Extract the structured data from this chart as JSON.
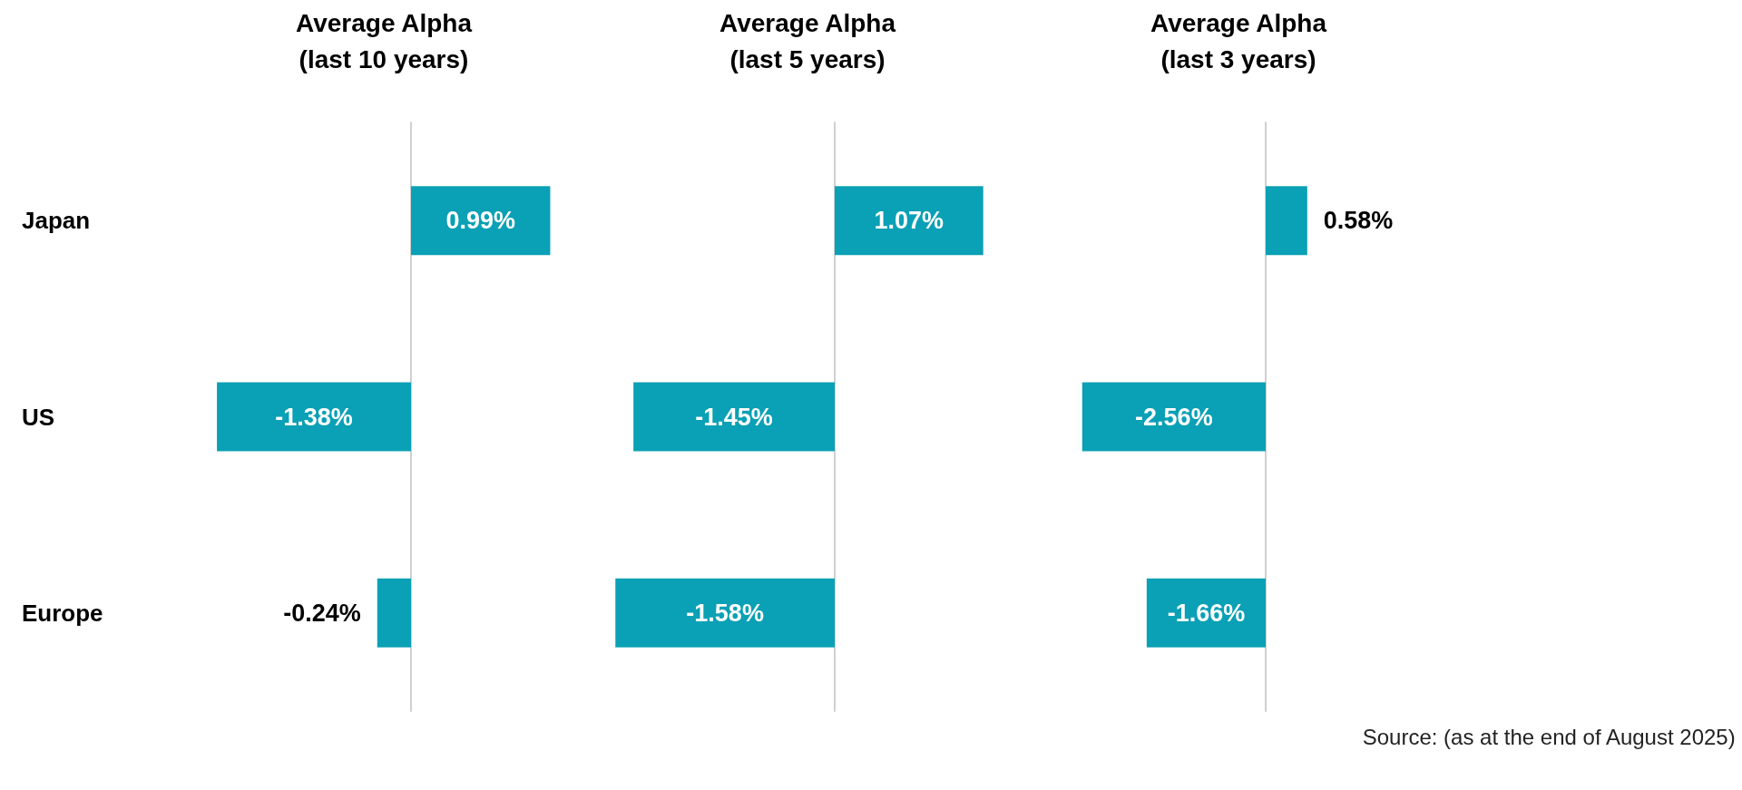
{
  "chart_data": [
    {
      "type": "bar",
      "orientation": "horizontal",
      "title": "Average Alpha\n(last 10 years)",
      "categories": [
        "Japan",
        "US",
        "Europe"
      ],
      "values": [
        0.99,
        -1.38,
        -0.24
      ],
      "value_labels": [
        "0.99%",
        "-1.38%",
        "-0.24%"
      ],
      "color": "#0aa0b5",
      "tick_labels": "y"
    },
    {
      "type": "bar",
      "orientation": "horizontal",
      "title": "Average Alpha\n(last 5 years)",
      "categories": [
        null,
        null,
        null
      ],
      "values": [
        1.07,
        -1.45,
        -1.58
      ],
      "value_labels": [
        "1.07%",
        "-1.45%",
        "-1.58%"
      ],
      "color": "#0aa0b5",
      "tick_labels": false
    },
    {
      "type": "bar",
      "orientation": "horizontal",
      "title": "Average Alpha\n(last 3 years)",
      "categories": [
        null,
        null,
        null
      ],
      "values": [
        0.58,
        -2.56,
        -1.66
      ],
      "value_labels": [
        "0.58%",
        "-2.56%",
        "-1.66%"
      ],
      "color": "#0aa0b5",
      "tick_labels": false,
      "annotations": [
        "Source: (as at the end of August 2025)"
      ]
    }
  ]
}
